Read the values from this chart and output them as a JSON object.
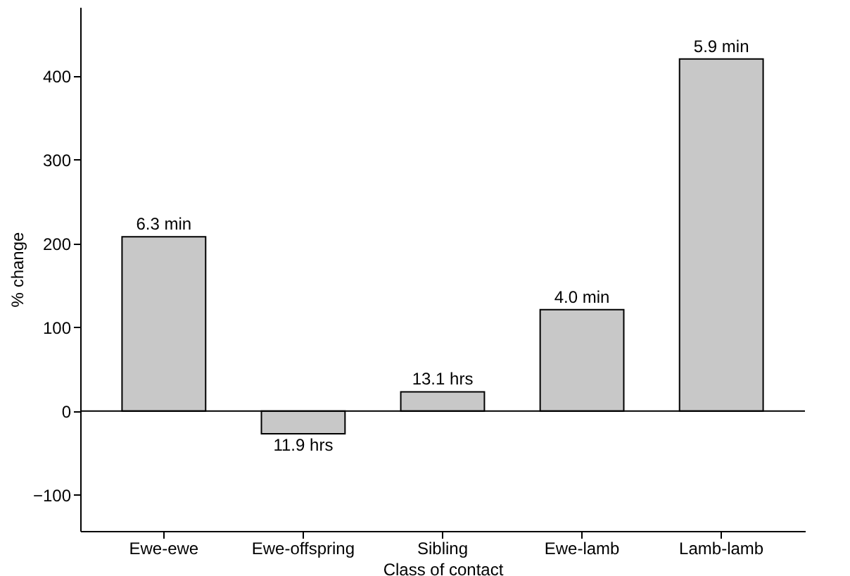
{
  "chart_data": {
    "type": "bar",
    "xlabel": "Class of contact",
    "ylabel": "% change",
    "categories": [
      "Ewe-ewe",
      "Ewe-offspring",
      "Sibling",
      "Ewe-lamb",
      "Lamb-lamb"
    ],
    "values": [
      208,
      -27,
      23,
      121,
      420
    ],
    "annotations": [
      {
        "text": "6.3 min",
        "x": "Ewe-ewe",
        "y": 208
      },
      {
        "text": "11.9 hrs",
        "x": "Ewe-offspring",
        "y": -27
      },
      {
        "text": "13.1 hrs",
        "x": "Sibling",
        "y": 23
      },
      {
        "text": "4.0 min",
        "x": "Ewe-lamb",
        "y": 121
      },
      {
        "text": "5.9 min",
        "x": "Lamb-lamb",
        "y": 420
      }
    ],
    "color": "#c8c8c8",
    "ylim": [
      -143,
      482
    ],
    "yticks": [
      {
        "value": -100,
        "label": "−100"
      },
      0,
      100,
      200,
      300,
      400
    ],
    "ref_lines": [
      {
        "axis": "y",
        "value": 0,
        "color": "#000000"
      }
    ],
    "grid": false
  }
}
